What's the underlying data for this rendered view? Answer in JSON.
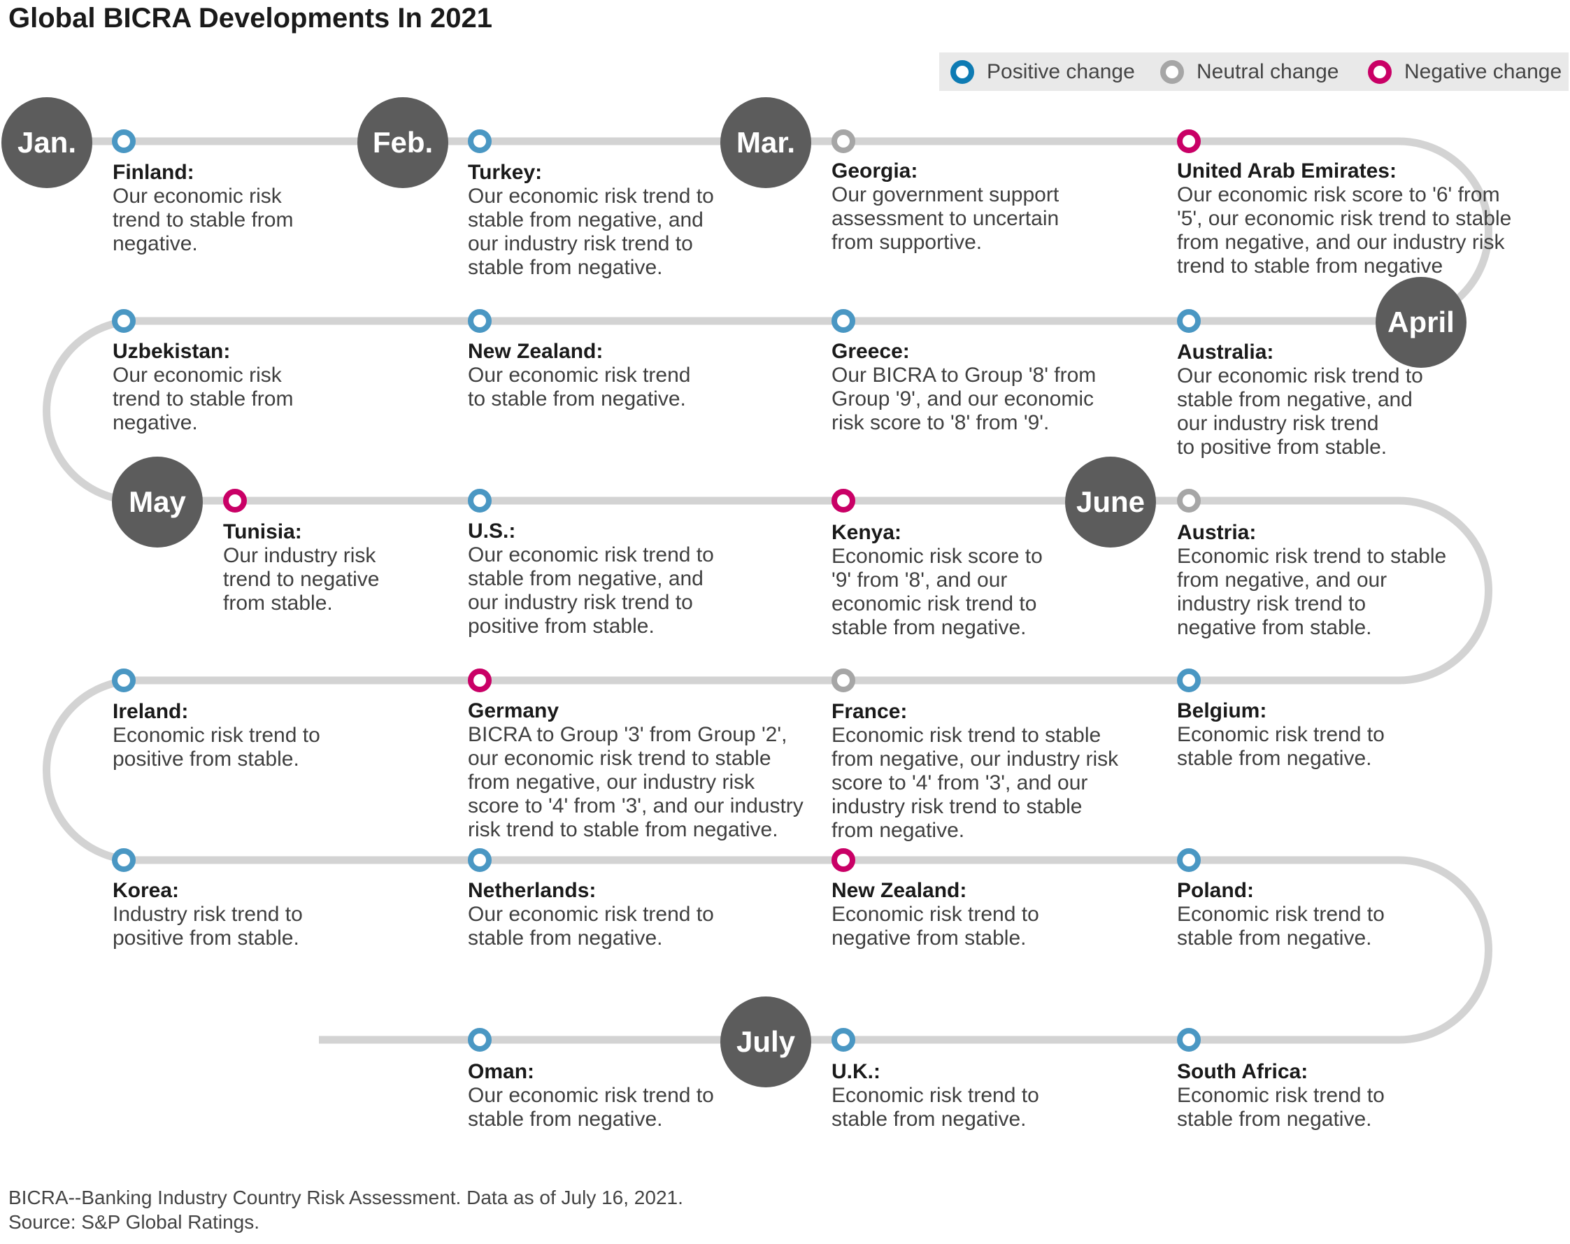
{
  "title": "Global BICRA Developments In 2021",
  "colors": {
    "positive": "#4a97c3",
    "neutral": "#a6a6a6",
    "negative": "#c90066",
    "track": "#d3d3d3",
    "month_badge": "#5c5c5c"
  },
  "legend": [
    {
      "type": "positive",
      "label": "Positive change"
    },
    {
      "type": "neutral",
      "label": "Neutral change"
    },
    {
      "type": "negative",
      "label": "Negative change"
    }
  ],
  "months": [
    "Jan.",
    "Feb.",
    "Mar.",
    "April",
    "May",
    "June",
    "July"
  ],
  "events": [
    {
      "country": "Finland:",
      "type": "positive",
      "text": "Our economic risk\ntrend to stable from\nnegative."
    },
    {
      "country": "Turkey:",
      "type": "positive",
      "text": "Our economic risk trend to\nstable from negative, and\nour industry risk trend to\nstable from negative."
    },
    {
      "country": "Georgia:",
      "type": "neutral",
      "text": "Our government support\nassessment to uncertain\nfrom supportive."
    },
    {
      "country": "United Arab Emirates:",
      "type": "negative",
      "text": "Our economic risk score to '6' from\n'5', our economic risk trend to stable\nfrom negative, and our industry risk\ntrend to stable from negative"
    },
    {
      "country": "Uzbekistan:",
      "type": "positive",
      "text": "Our economic risk\ntrend to stable from\nnegative."
    },
    {
      "country": "New Zealand:",
      "type": "positive",
      "text": "Our economic risk trend\nto stable from negative."
    },
    {
      "country": "Greece:",
      "type": "positive",
      "text": "Our BICRA to Group '8' from\nGroup '9', and our economic\nrisk score to '8' from '9'."
    },
    {
      "country": "Australia:",
      "type": "positive",
      "text": "Our economic risk trend to\nstable from negative, and\nour industry risk trend\nto positive from stable."
    },
    {
      "country": "Tunisia:",
      "type": "negative",
      "text": "Our industry risk\ntrend to negative\nfrom stable."
    },
    {
      "country": "U.S.:",
      "type": "positive",
      "text": "Our economic risk trend to\nstable from negative, and\nour industry risk trend to\npositive from stable."
    },
    {
      "country": "Kenya:",
      "type": "negative",
      "text": "Economic risk score to\n'9' from '8', and our\neconomic risk trend to\nstable from negative."
    },
    {
      "country": "Austria:",
      "type": "neutral",
      "text": "Economic risk trend to stable\nfrom negative, and our\nindustry risk trend to\nnegative from stable."
    },
    {
      "country": "Ireland:",
      "type": "positive",
      "text": "Economic risk trend to\npositive from stable."
    },
    {
      "country": "Germany",
      "type": "negative",
      "text": "BICRA to Group '3' from Group '2',\nour economic risk trend to stable\nfrom negative, our industry risk\nscore to '4' from '3', and our industry\nrisk trend to stable from negative."
    },
    {
      "country": "France:",
      "type": "neutral",
      "text": "Economic risk trend to stable\nfrom negative, our industry risk\nscore to '4' from '3', and our\nindustry risk trend to stable\nfrom negative."
    },
    {
      "country": "Belgium:",
      "type": "positive",
      "text": "Economic risk trend to\nstable from negative."
    },
    {
      "country": "Korea:",
      "type": "positive",
      "text": "Industry risk trend to\npositive from stable."
    },
    {
      "country": "Netherlands:",
      "type": "positive",
      "text": "Our economic risk trend to\nstable from negative."
    },
    {
      "country": "New Zealand:",
      "type": "negative",
      "text": "Economic risk trend to\nnegative from stable."
    },
    {
      "country": "Poland:",
      "type": "positive",
      "text": "Economic risk trend to\nstable from negative."
    },
    {
      "country": "Oman:",
      "type": "positive",
      "text": "Our economic risk trend to\nstable from negative."
    },
    {
      "country": "U.K.:",
      "type": "positive",
      "text": "Economic risk trend to\nstable from negative."
    },
    {
      "country": "South Africa:",
      "type": "positive",
      "text": "Economic risk trend to\nstable from negative."
    }
  ],
  "footnote": {
    "line1": "BICRA--Banking Industry Country Risk Assessment. Data as of July 16, 2021.",
    "line2": "Source: S&P Global Ratings."
  }
}
